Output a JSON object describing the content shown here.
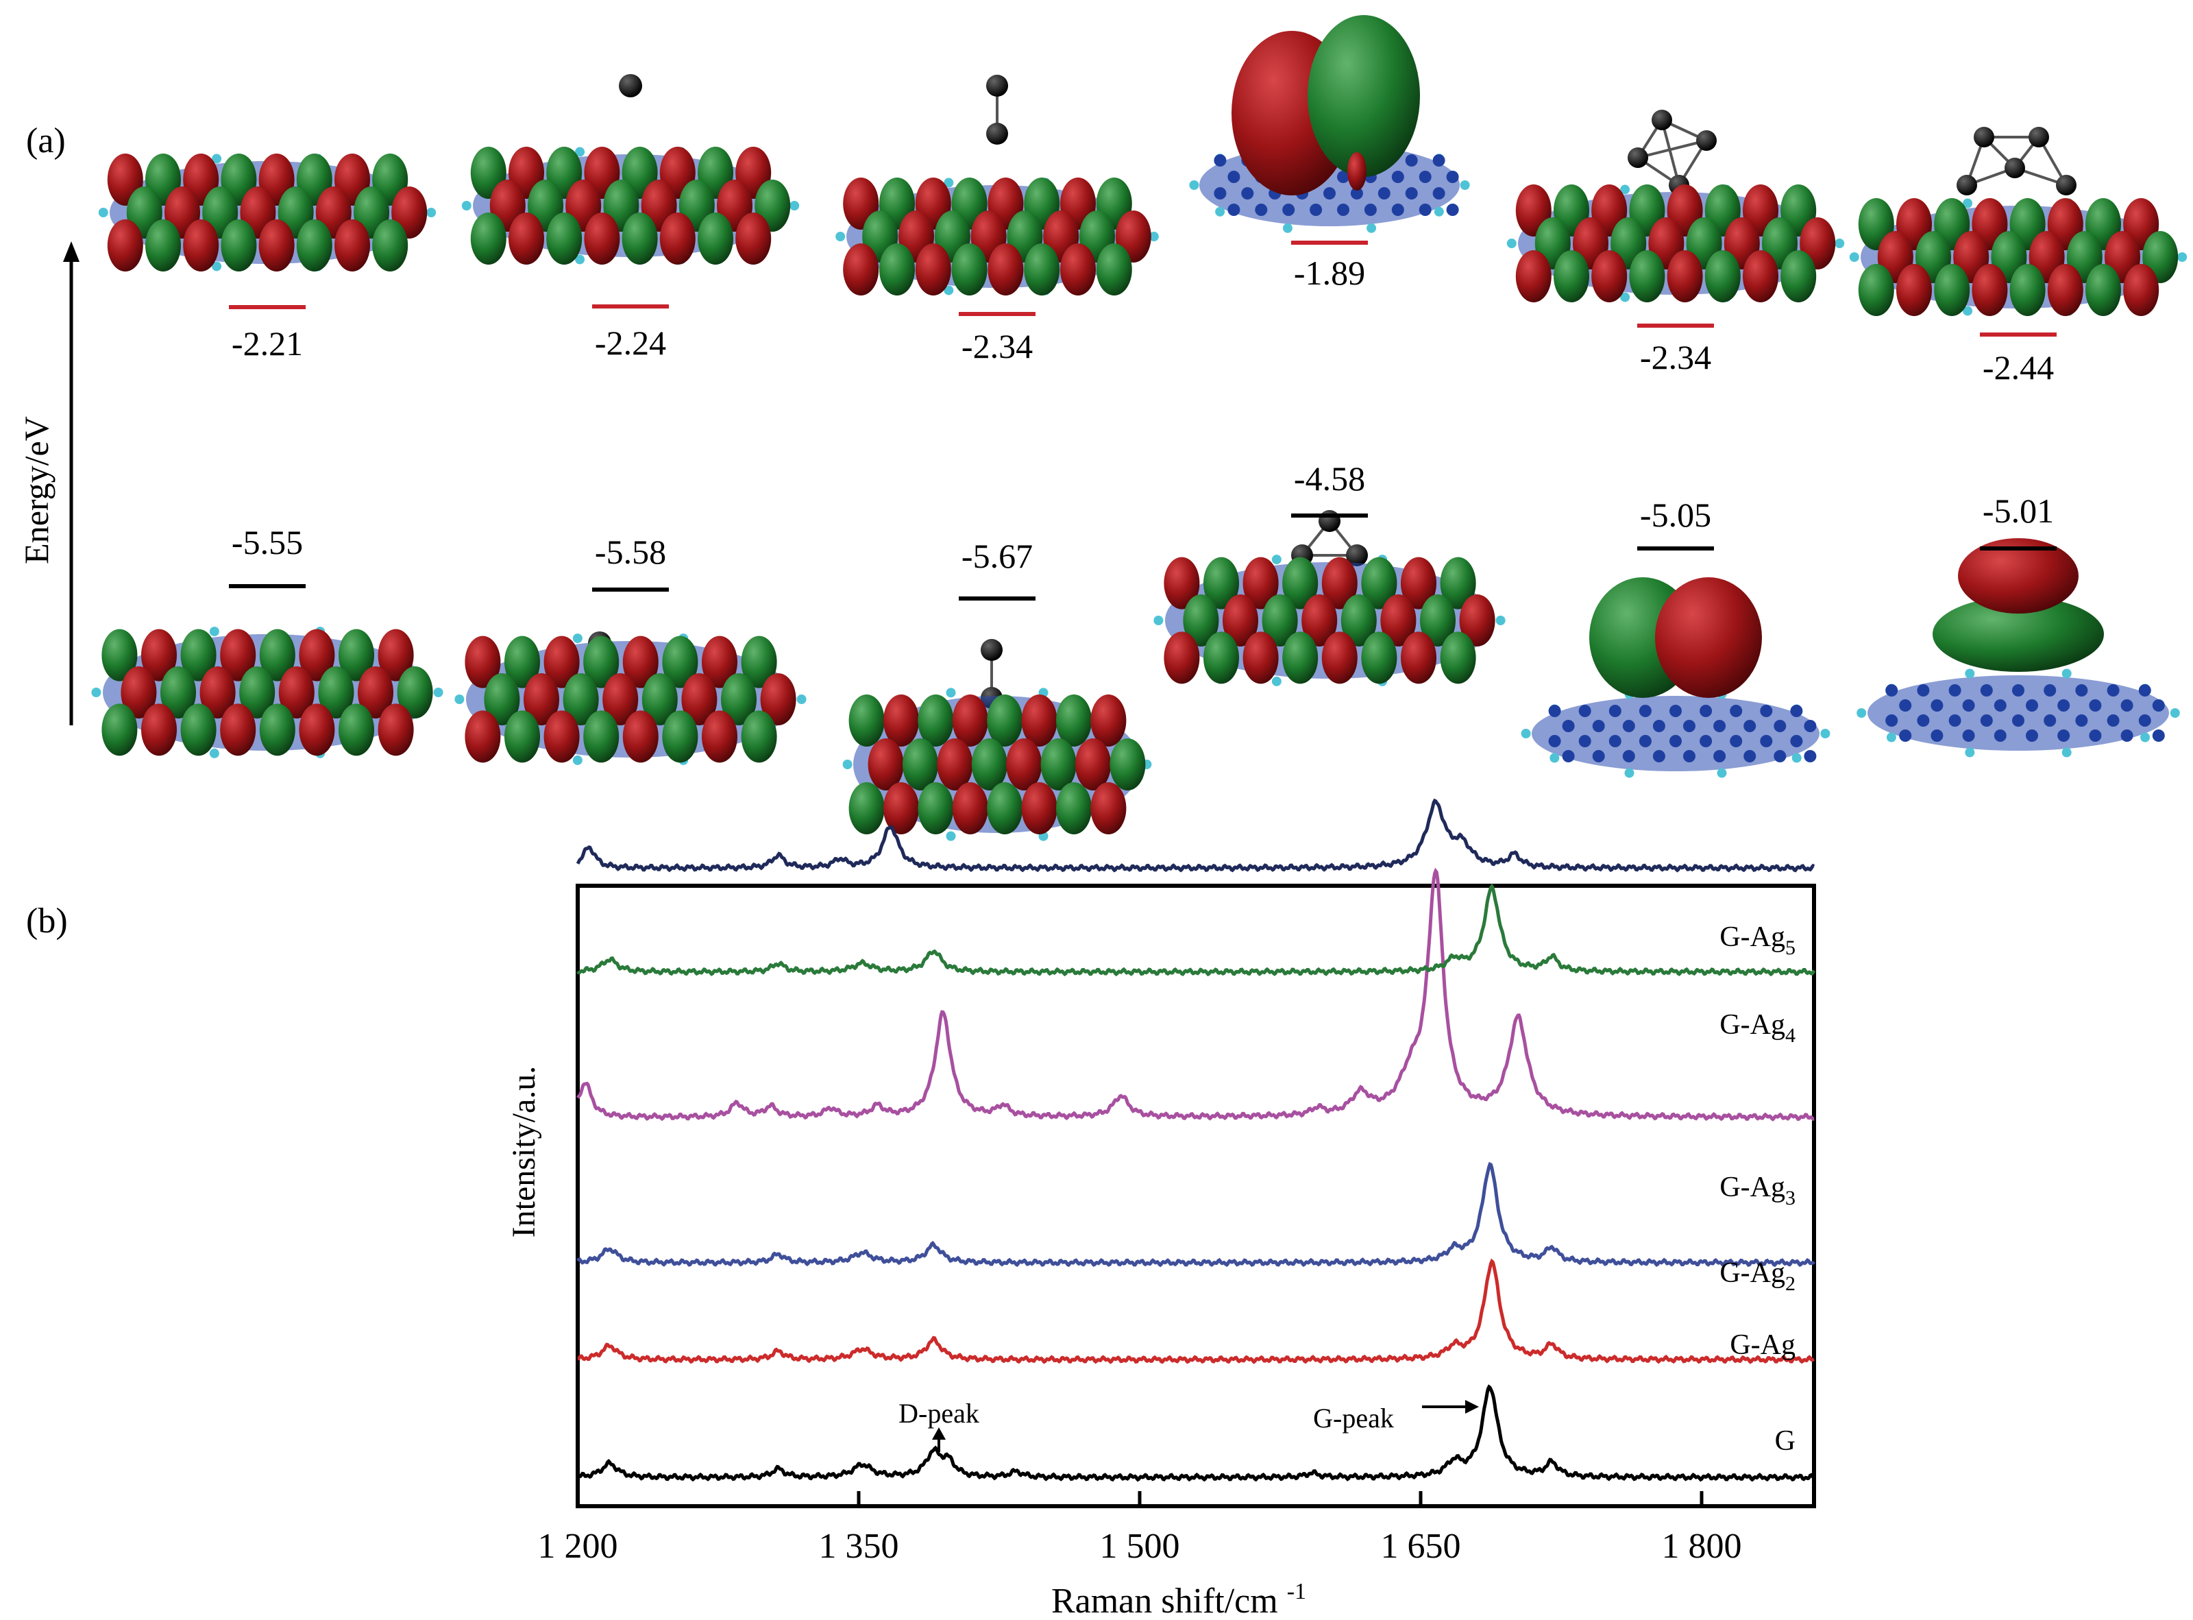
{
  "panel_a": {
    "label": "(a)",
    "ylabel": "Energy/eV",
    "lumo_color": "#c8232c",
    "homo_color": "#000000",
    "lobe_red": "#9c1416",
    "lobe_green": "#1d7a2c",
    "lattice_blue": "#1f3fa0",
    "hydrogen_cyan": "#4fc3d6",
    "atom_black": "#000000",
    "structures": [
      {
        "lumo": "-2.21",
        "homo": "-5.55",
        "ag_atoms": 0
      },
      {
        "lumo": "-2.24",
        "homo": "-5.58",
        "ag_atoms": 1
      },
      {
        "lumo": "-2.34",
        "homo": "-5.67",
        "ag_atoms": 2
      },
      {
        "lumo": "-1.89",
        "homo": "-4.58",
        "ag_atoms": 3
      },
      {
        "lumo": "-2.34",
        "homo": "-5.05",
        "ag_atoms": 4
      },
      {
        "lumo": "-2.44",
        "homo": "-5.01",
        "ag_atoms": 5
      }
    ]
  },
  "panel_b": {
    "label": "(b)",
    "annotations": {
      "d_peak": "D-peak",
      "g_peak": "G-peak"
    }
  },
  "chart_data": {
    "type": "line",
    "xlabel": "Raman shift/cm-1",
    "ylabel": "Intensity/a.u.",
    "xlim": [
      1200,
      1860
    ],
    "xticks": [
      1200,
      1350,
      1500,
      1650,
      1800
    ],
    "xtick_labels": [
      "1 200",
      "1 350",
      "1 500",
      "1 650",
      "1 800"
    ],
    "legend_placement": "right, next to each trace",
    "series": [
      {
        "name": "G",
        "sub": "",
        "color": "#000000",
        "baseline": 0.0,
        "peaks": [
          [
            1217,
            0.02,
            5
          ],
          [
            1307,
            0.012,
            4
          ],
          [
            1352,
            0.018,
            6
          ],
          [
            1390,
            0.035,
            5
          ],
          [
            1398,
            0.02,
            4
          ],
          [
            1434,
            0.008,
            4
          ],
          [
            1592,
            0.006,
            4
          ],
          [
            1668,
            0.02,
            5
          ],
          [
            1687,
            0.13,
            5
          ],
          [
            1720,
            0.02,
            4
          ]
        ]
      },
      {
        "name": "G-Ag",
        "sub": "",
        "color": "#cc2b2b",
        "baseline": 0.17,
        "peaks": [
          [
            1217,
            0.02,
            5
          ],
          [
            1307,
            0.012,
            4
          ],
          [
            1352,
            0.015,
            6
          ],
          [
            1390,
            0.028,
            5
          ],
          [
            1668,
            0.016,
            5
          ],
          [
            1688,
            0.14,
            5
          ],
          [
            1720,
            0.02,
            4
          ]
        ]
      },
      {
        "name": "G-Ag",
        "sub": "2",
        "color": "#3f4f9a",
        "baseline": 0.31,
        "peaks": [
          [
            1217,
            0.02,
            5
          ],
          [
            1307,
            0.012,
            4
          ],
          [
            1352,
            0.014,
            6
          ],
          [
            1390,
            0.025,
            5
          ],
          [
            1668,
            0.016,
            5
          ],
          [
            1687,
            0.14,
            5
          ],
          [
            1720,
            0.02,
            4
          ]
        ]
      },
      {
        "name": "G-Ag",
        "sub": "3",
        "color": "#a850a0",
        "baseline": 0.52,
        "peaks": [
          [
            1204,
            0.05,
            4
          ],
          [
            1285,
            0.02,
            4
          ],
          [
            1303,
            0.015,
            4
          ],
          [
            1335,
            0.012,
            4
          ],
          [
            1360,
            0.015,
            4
          ],
          [
            1395,
            0.15,
            5
          ],
          [
            1427,
            0.015,
            4
          ],
          [
            1490,
            0.03,
            5
          ],
          [
            1595,
            0.01,
            4
          ],
          [
            1618,
            0.03,
            6
          ],
          [
            1645,
            0.05,
            8
          ],
          [
            1658,
            0.34,
            5
          ],
          [
            1702,
            0.14,
            6
          ]
        ]
      },
      {
        "name": "G-Ag",
        "sub": "4",
        "color": "#2a7a3a",
        "baseline": 0.73,
        "peaks": [
          [
            1217,
            0.018,
            5
          ],
          [
            1307,
            0.012,
            4
          ],
          [
            1352,
            0.012,
            6
          ],
          [
            1390,
            0.03,
            5
          ],
          [
            1668,
            0.016,
            5
          ],
          [
            1688,
            0.12,
            5
          ],
          [
            1720,
            0.02,
            4
          ]
        ]
      },
      {
        "name": "G-Ag",
        "sub": "5",
        "color": "#1f2a5a",
        "baseline": 0.88,
        "peaks": [
          [
            1206,
            0.03,
            4
          ],
          [
            1307,
            0.018,
            4
          ],
          [
            1340,
            0.012,
            4
          ],
          [
            1367,
            0.06,
            5
          ],
          [
            1658,
            0.09,
            6
          ],
          [
            1672,
            0.03,
            6
          ],
          [
            1700,
            0.018,
            4
          ]
        ]
      }
    ]
  }
}
